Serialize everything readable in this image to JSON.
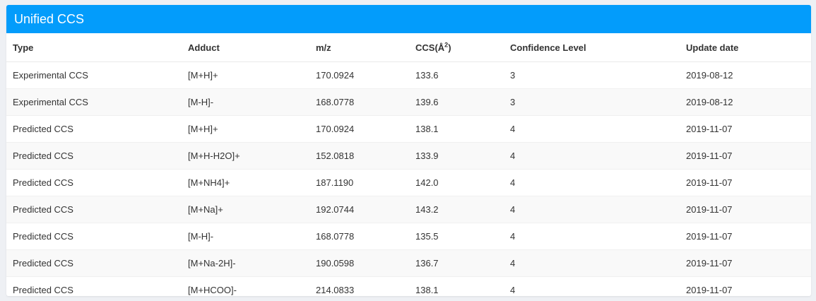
{
  "panel": {
    "title": "Unified CCS"
  },
  "table": {
    "headers": {
      "type": "Type",
      "adduct": "Adduct",
      "mz": "m/z",
      "ccs": "CCS(Å",
      "ccs_sup": "2",
      "ccs_close": ")",
      "confidence": "Confidence Level",
      "update_date": "Update date"
    },
    "rows": [
      {
        "type": "Experimental CCS",
        "adduct": "[M+H]+",
        "mz": "170.0924",
        "ccs": "133.6",
        "confidence": "3",
        "update_date": "2019-08-12"
      },
      {
        "type": "Experimental CCS",
        "adduct": "[M-H]-",
        "mz": "168.0778",
        "ccs": "139.6",
        "confidence": "3",
        "update_date": "2019-08-12"
      },
      {
        "type": "Predicted CCS",
        "adduct": "[M+H]+",
        "mz": "170.0924",
        "ccs": "138.1",
        "confidence": "4",
        "update_date": "2019-11-07"
      },
      {
        "type": "Predicted CCS",
        "adduct": "[M+H-H2O]+",
        "mz": "152.0818",
        "ccs": "133.9",
        "confidence": "4",
        "update_date": "2019-11-07"
      },
      {
        "type": "Predicted CCS",
        "adduct": "[M+NH4]+",
        "mz": "187.1190",
        "ccs": "142.0",
        "confidence": "4",
        "update_date": "2019-11-07"
      },
      {
        "type": "Predicted CCS",
        "adduct": "[M+Na]+",
        "mz": "192.0744",
        "ccs": "143.2",
        "confidence": "4",
        "update_date": "2019-11-07"
      },
      {
        "type": "Predicted CCS",
        "adduct": "[M-H]-",
        "mz": "168.0778",
        "ccs": "135.5",
        "confidence": "4",
        "update_date": "2019-11-07"
      },
      {
        "type": "Predicted CCS",
        "adduct": "[M+Na-2H]-",
        "mz": "190.0598",
        "ccs": "136.7",
        "confidence": "4",
        "update_date": "2019-11-07"
      },
      {
        "type": "Predicted CCS",
        "adduct": "[M+HCOO]-",
        "mz": "214.0833",
        "ccs": "138.1",
        "confidence": "4",
        "update_date": "2019-11-07"
      }
    ]
  },
  "colors": {
    "header_bg": "#039cfb",
    "stripe_bg": "#f9f9f9",
    "page_bg": "#eef0f4"
  }
}
